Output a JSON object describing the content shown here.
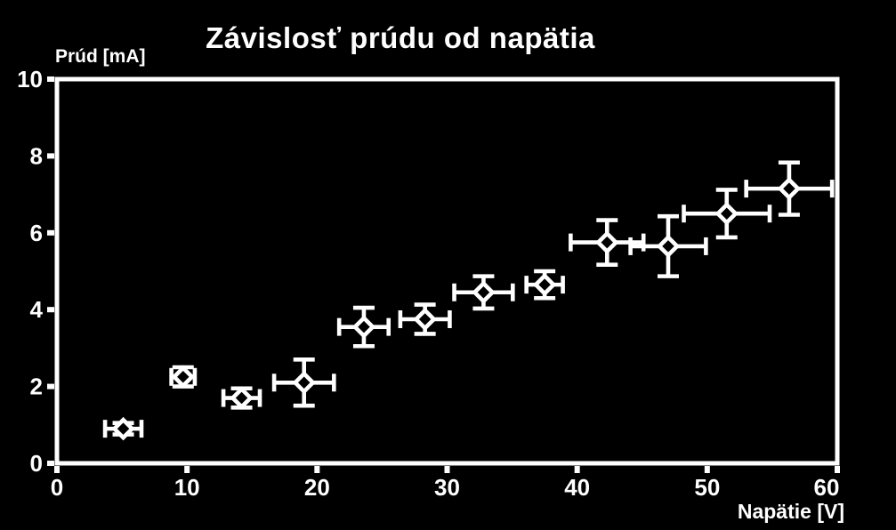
{
  "chart_data": {
    "type": "scatter",
    "title": "Závislosť prúdu od napätia",
    "xlabel": "Napätie [V]",
    "ylabel": "Prúd [mA]",
    "xlim": [
      0,
      60
    ],
    "ylim": [
      0,
      10
    ],
    "x_ticks": [
      0,
      10,
      20,
      30,
      40,
      50,
      60
    ],
    "y_ticks": [
      0,
      2,
      4,
      6,
      8,
      10
    ],
    "grid": false,
    "legend": "none",
    "marker": "open-diamond",
    "error_bars": "xy",
    "colors": {
      "background": "#000000",
      "foreground": "#ffffff"
    },
    "points": [
      {
        "x": 5.1,
        "y": 0.9,
        "xerr": 1.4,
        "yerr": 0.15
      },
      {
        "x": 9.7,
        "y": 2.25,
        "xerr": 0.9,
        "yerr": 0.25
      },
      {
        "x": 14.2,
        "y": 1.7,
        "xerr": 1.4,
        "yerr": 0.25
      },
      {
        "x": 19.0,
        "y": 2.1,
        "xerr": 2.3,
        "yerr": 0.6
      },
      {
        "x": 23.6,
        "y": 3.55,
        "xerr": 1.9,
        "yerr": 0.5
      },
      {
        "x": 28.3,
        "y": 3.75,
        "xerr": 1.9,
        "yerr": 0.38
      },
      {
        "x": 32.8,
        "y": 4.45,
        "xerr": 2.25,
        "yerr": 0.42
      },
      {
        "x": 37.5,
        "y": 4.65,
        "xerr": 1.4,
        "yerr": 0.35
      },
      {
        "x": 42.3,
        "y": 5.75,
        "xerr": 2.8,
        "yerr": 0.58
      },
      {
        "x": 47.0,
        "y": 5.65,
        "xerr": 2.9,
        "yerr": 0.78
      },
      {
        "x": 51.5,
        "y": 6.5,
        "xerr": 3.3,
        "yerr": 0.62
      },
      {
        "x": 56.3,
        "y": 7.15,
        "xerr": 3.3,
        "yerr": 0.68
      }
    ]
  }
}
